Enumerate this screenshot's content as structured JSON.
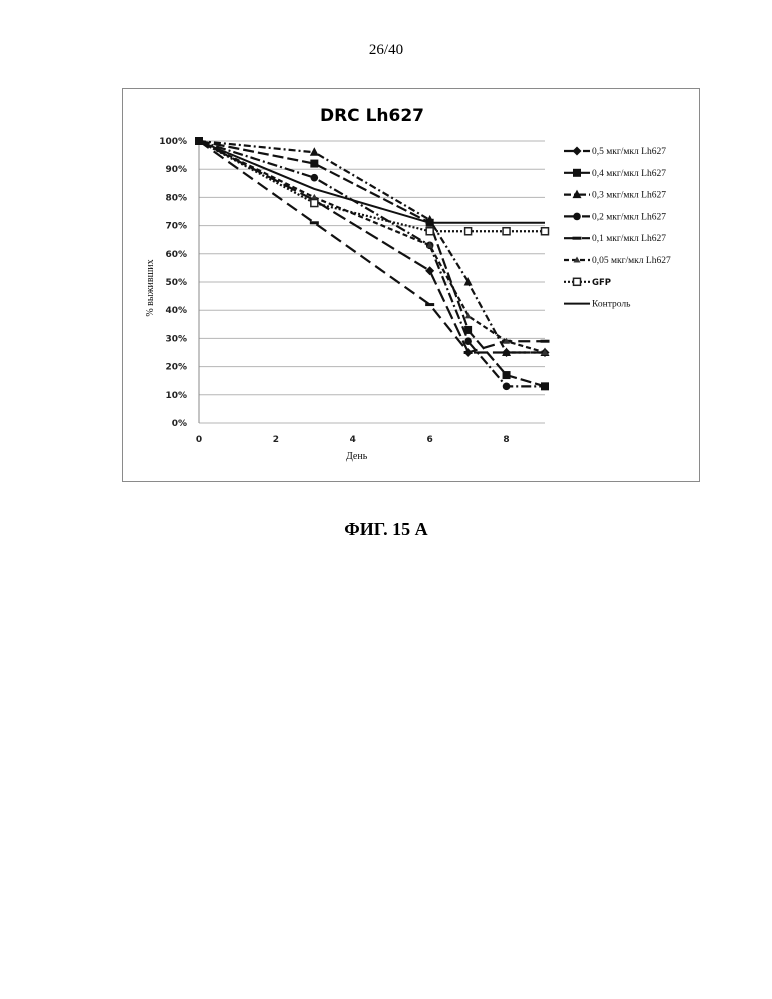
{
  "page": {
    "page_number": "26/40",
    "figure_caption": "ФИГ. 15 А"
  },
  "chart_data": {
    "type": "line",
    "title": "DRC Lh627",
    "xlabel": "День",
    "ylabel": "% выживших",
    "xlim": [
      0,
      9
    ],
    "ylim": [
      0,
      100
    ],
    "x_ticks": [
      "0",
      "2",
      "4",
      "6",
      "8"
    ],
    "y_ticks": [
      "0%",
      "10%",
      "20%",
      "30%",
      "40%",
      "50%",
      "60%",
      "70%",
      "80%",
      "90%",
      "100%"
    ],
    "grid": "horizontal",
    "legend_position": "right",
    "x": [
      0,
      3,
      6,
      7,
      8,
      9
    ],
    "series": [
      {
        "name": "0,5 мкг/мкл Lh627",
        "marker": "diamond",
        "dash": "14,5",
        "values": [
          100,
          79,
          54,
          25,
          25,
          25
        ]
      },
      {
        "name": "0,4 мкг/мкл Lh627",
        "marker": "square",
        "dash": "11,4",
        "values": [
          100,
          92,
          71,
          33,
          17,
          13
        ]
      },
      {
        "name": "0,3 мкг/мкл Lh627",
        "marker": "triangle",
        "dash": "7,3,2,3",
        "values": [
          100,
          96,
          72,
          50,
          25,
          25
        ]
      },
      {
        "name": "0,2 мкг/мкл Lh627",
        "marker": "circle",
        "dash": "10,3,2,3",
        "values": [
          100,
          87,
          63,
          29,
          13,
          13
        ]
      },
      {
        "name": "0,1 мкг/мкл Lh627",
        "marker": "dash",
        "dash": "12,6",
        "values": [
          100,
          71,
          42,
          25,
          29,
          29
        ]
      },
      {
        "name": "0,05 мкг/мкл Lh627",
        "marker": "triangle-small",
        "dash": "5,3",
        "values": [
          100,
          80,
          63,
          38,
          29,
          25
        ]
      },
      {
        "name": "GFP",
        "marker": "square-open",
        "dash": "2,2",
        "values": [
          100,
          78,
          68,
          68,
          68,
          68
        ]
      },
      {
        "name": "Контроль",
        "marker": "none",
        "dash": "",
        "values": [
          100,
          83,
          71,
          71,
          71,
          71
        ]
      }
    ]
  }
}
